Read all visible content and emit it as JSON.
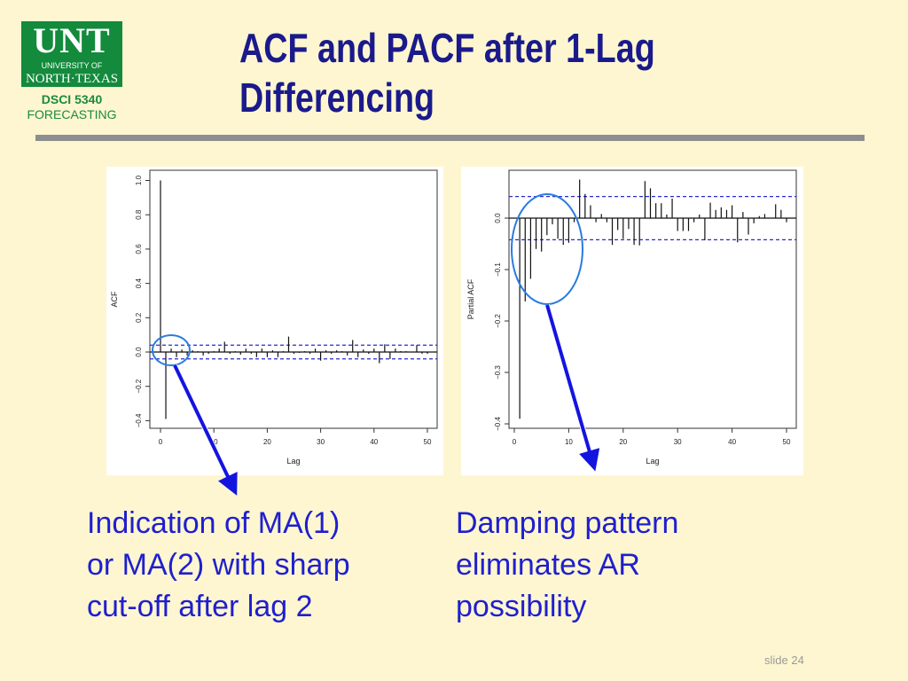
{
  "logo": {
    "main": "UNT",
    "line1": "UNIVERSITY OF",
    "line2": "NORTH·TEXAS",
    "color": "#138a3c"
  },
  "course": {
    "code": "DSCI 5340",
    "name": "FORECASTING"
  },
  "title": {
    "line1": "ACF and PACF after 1-Lag",
    "line2": "Differencing"
  },
  "captions": {
    "left": [
      "Indication of MA(1)",
      "or MA(2) with sharp",
      "cut-off after lag 2"
    ],
    "right": [
      "Damping pattern",
      "eliminates AR",
      "possibility"
    ]
  },
  "slide_number": "slide 24",
  "colors": {
    "title": "#1a1a8c",
    "caption": "#1f1fcf",
    "annotation": "#1414e0",
    "ellipse": "#2a7be0",
    "confidence": "#2a2ad0"
  },
  "chart_data": [
    {
      "type": "bar",
      "xlabel": "Lag",
      "ylabel": "ACF",
      "xlim": [
        0,
        50
      ],
      "ylim": [
        -0.4,
        1.0
      ],
      "xticks": [
        "0",
        "10",
        "20",
        "30",
        "40",
        "50"
      ],
      "yticks": [
        "-0.4",
        "-0.2",
        "0.0",
        "0.2",
        "0.4",
        "0.6",
        "0.8",
        "1.0"
      ],
      "confidence_band": 0.04,
      "lags": [
        0,
        1,
        2,
        3,
        4,
        5,
        6,
        7,
        8,
        9,
        10,
        11,
        12,
        13,
        14,
        15,
        16,
        17,
        18,
        19,
        20,
        21,
        22,
        23,
        24,
        25,
        26,
        27,
        28,
        29,
        30,
        31,
        32,
        33,
        34,
        35,
        36,
        37,
        38,
        39,
        40,
        41,
        42,
        43,
        44,
        45,
        46,
        47,
        48,
        49,
        50
      ],
      "values": [
        1.0,
        -0.39,
        0.02,
        -0.03,
        0.015,
        -0.02,
        0.01,
        0.005,
        -0.02,
        -0.01,
        0.005,
        0.02,
        0.06,
        -0.01,
        0.005,
        -0.015,
        0.02,
        -0.01,
        -0.03,
        0.02,
        -0.03,
        0.01,
        -0.03,
        0.005,
        0.09,
        -0.01,
        -0.005,
        0.005,
        -0.01,
        0.02,
        -0.05,
        0.01,
        -0.01,
        0.01,
        0.005,
        -0.02,
        0.07,
        -0.03,
        0.015,
        -0.01,
        0.02,
        -0.065,
        0.045,
        -0.04,
        0.02,
        0.005,
        0.005,
        0.0,
        0.04,
        -0.01,
        -0.01
      ],
      "annotation": "Indication of MA(1) or MA(2) with sharp cut-off after lag 2"
    },
    {
      "type": "bar",
      "xlabel": "Lag",
      "ylabel": "Partial ACF",
      "xlim": [
        0,
        50
      ],
      "ylim": [
        -0.4,
        0.09
      ],
      "xticks": [
        "0",
        "10",
        "20",
        "30",
        "40",
        "50"
      ],
      "yticks": [
        "-0.4",
        "-0.3",
        "-0.2",
        "-0.1",
        "0.0"
      ],
      "confidence_band": 0.042,
      "lags": [
        1,
        2,
        3,
        4,
        5,
        6,
        7,
        8,
        9,
        10,
        11,
        12,
        13,
        14,
        15,
        16,
        17,
        18,
        19,
        20,
        21,
        22,
        23,
        24,
        25,
        26,
        27,
        28,
        29,
        30,
        31,
        32,
        33,
        34,
        35,
        36,
        37,
        38,
        39,
        40,
        41,
        42,
        43,
        44,
        45,
        46,
        47,
        48,
        49,
        50
      ],
      "values": [
        -0.39,
        -0.162,
        -0.118,
        -0.06,
        -0.065,
        -0.033,
        -0.012,
        -0.04,
        -0.052,
        -0.048,
        -0.008,
        0.075,
        0.047,
        0.025,
        -0.008,
        0.008,
        -0.008,
        -0.052,
        -0.023,
        -0.04,
        -0.021,
        -0.052,
        -0.053,
        0.072,
        0.058,
        0.029,
        0.029,
        0.007,
        0.038,
        -0.025,
        -0.025,
        -0.025,
        -0.008,
        0.007,
        -0.043,
        0.03,
        0.016,
        0.021,
        0.016,
        0.025,
        -0.047,
        0.012,
        -0.032,
        -0.01,
        0.004,
        0.008,
        0.0,
        0.027,
        0.016,
        -0.008
      ],
      "annotation": "Damping pattern eliminates AR possibility"
    }
  ]
}
